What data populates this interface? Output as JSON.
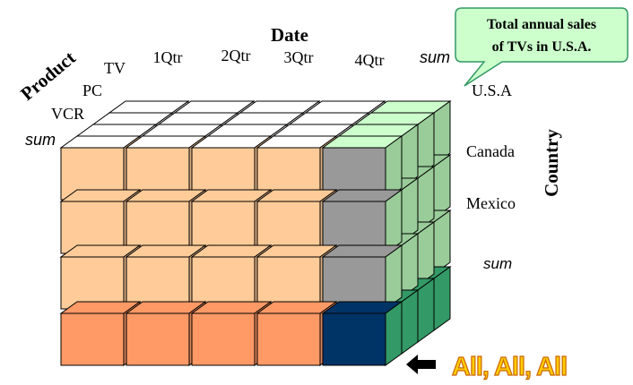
{
  "title": "Date",
  "axes": {
    "date_title": "Date",
    "product_title": "Product",
    "country_title": "Country"
  },
  "dates": [
    "1Qtr",
    "2Qtr",
    "3Qtr",
    "4Qtr",
    "sum"
  ],
  "products": [
    "TV",
    "PC",
    "VCR",
    "sum"
  ],
  "countries": [
    "U.S.A",
    "Canada",
    "Mexico",
    "sum"
  ],
  "callout": {
    "line1": "Total annual sales",
    "line2": "of  TVs in U.S.A."
  },
  "all_label": "All, All, All",
  "arrow_icon": "left-arrow-icon",
  "colors": {
    "front_light": "#ffcc99",
    "front_bottom": "#ff9966",
    "sum_gray": "#999999",
    "corner_navy": "#003366",
    "right_light_green": "#ccffcc",
    "right_mid_green": "#99cc99",
    "right_dark_green": "#339966",
    "top_white": "#ffffff",
    "callout_fill": "#ccffcc",
    "all_fill": "#ffcc00"
  }
}
